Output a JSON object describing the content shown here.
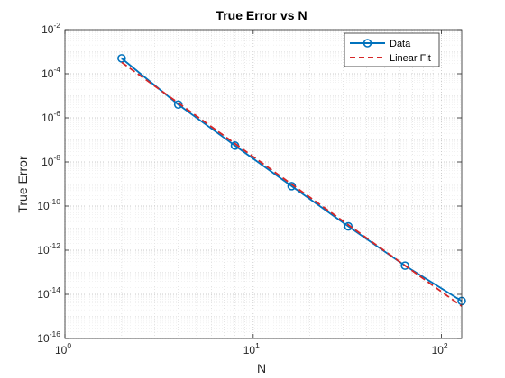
{
  "chart_data": {
    "type": "line",
    "title": "True Error vs N",
    "xlabel": "N",
    "ylabel": "True Error",
    "xscale": "log",
    "yscale": "log",
    "xlim": [
      1,
      128
    ],
    "ylim": [
      1e-16,
      0.01
    ],
    "grid": true,
    "minor_grid": true,
    "legend_position": "top-right",
    "x_ticks": [
      {
        "base": "10",
        "exp": "0",
        "value": 1
      },
      {
        "base": "10",
        "exp": "1",
        "value": 10
      },
      {
        "base": "10",
        "exp": "2",
        "value": 100
      }
    ],
    "y_ticks": [
      {
        "base": "10",
        "exp": "-2",
        "value": 0.01
      },
      {
        "base": "10",
        "exp": "-4",
        "value": 0.0001
      },
      {
        "base": "10",
        "exp": "-6",
        "value": 1e-06
      },
      {
        "base": "10",
        "exp": "-8",
        "value": 1e-08
      },
      {
        "base": "10",
        "exp": "-10",
        "value": 1e-10
      },
      {
        "base": "10",
        "exp": "-12",
        "value": 1e-12
      },
      {
        "base": "10",
        "exp": "-14",
        "value": 1e-14
      },
      {
        "base": "10",
        "exp": "-16",
        "value": 1e-16
      }
    ],
    "series": [
      {
        "name": "Data",
        "color": "#0072BD",
        "style": "solid",
        "marker": "circle",
        "x": [
          2,
          4,
          8,
          16,
          32,
          64,
          128
        ],
        "y": [
          0.0005,
          4e-06,
          5.5e-08,
          8e-10,
          1.2e-11,
          2e-13,
          5e-15
        ]
      },
      {
        "name": "Linear Fit",
        "color": "#D62728",
        "style": "dashed",
        "marker": "none",
        "x": [
          2,
          128
        ],
        "y": [
          0.00033,
          2.9e-15
        ]
      }
    ]
  }
}
